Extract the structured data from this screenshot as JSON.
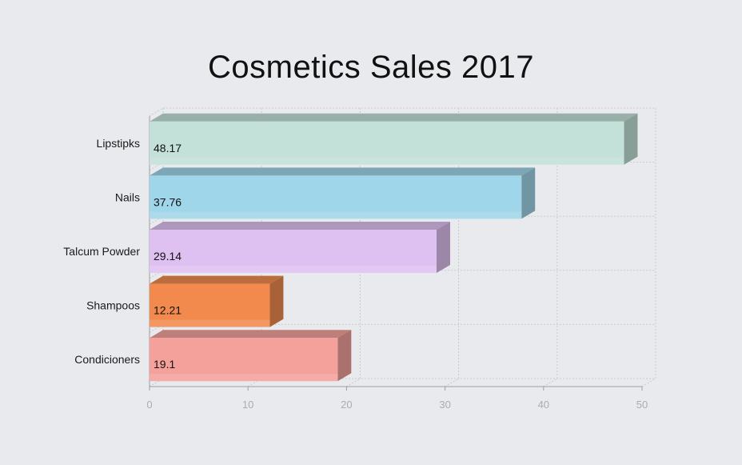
{
  "chart_data": {
    "type": "bar",
    "orientation": "horizontal",
    "title": "Cosmetics Sales 2017",
    "xlabel": "",
    "ylabel": "",
    "xlim": [
      0,
      50
    ],
    "x_ticks": [
      "0",
      "10",
      "20",
      "30",
      "40",
      "50"
    ],
    "grid": true,
    "style": "3d",
    "categories": [
      "Lipstipks",
      "Nails",
      "Talcum Powder",
      "Shampoos",
      "Condicioners"
    ],
    "values": [
      48.17,
      37.76,
      29.14,
      12.21,
      19.1
    ],
    "value_labels": [
      "48.17",
      "37.76",
      "29.14",
      "12.21",
      "19.1"
    ],
    "colors": [
      "#c3e1d8",
      "#a0d6e9",
      "#dfc1f1",
      "#f28a4e",
      "#f4a19b"
    ]
  }
}
